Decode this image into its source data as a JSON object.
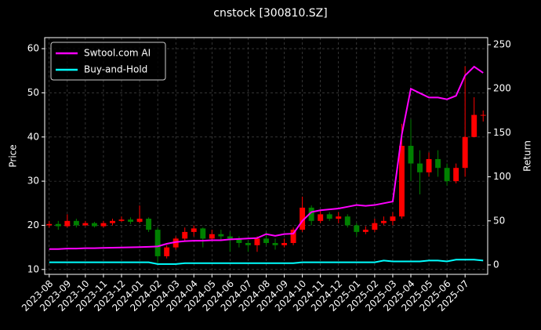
{
  "chart_data": {
    "type": "candlestick",
    "title": "cnstock [300810.SZ]",
    "y_label": "Price",
    "y2_label": "Return",
    "categories": [
      "2023-08",
      null,
      "2023-09",
      null,
      "2023-10",
      null,
      "2023-11",
      null,
      "2023-12",
      null,
      "2024-01",
      null,
      "2024-02",
      null,
      "2024-03",
      null,
      "2024-04",
      null,
      "2024-05",
      null,
      "2024-06",
      null,
      "2024-07",
      null,
      "2024-08",
      null,
      "2024-09",
      null,
      "2024-10",
      null,
      "2024-11",
      null,
      "2024-12",
      null,
      "2025-01",
      null,
      "2025-02",
      null,
      "2025-03",
      null,
      "2025-04",
      null,
      "2025-05",
      null,
      "2025-06",
      null,
      "2025-07",
      null,
      null
    ],
    "ohlc": {
      "up_color": "#ff0000",
      "down_color": "#008000",
      "open": [
        20,
        20.3,
        19.8,
        21,
        20,
        20.5,
        19.8,
        20.5,
        21,
        21.3,
        20.8,
        21.5,
        19,
        13,
        15,
        17,
        18.5,
        19.3,
        17,
        18,
        17.5,
        17,
        16,
        15.5,
        17,
        16,
        15.5,
        16,
        19,
        24,
        21,
        22.5,
        21.5,
        22,
        20,
        18.5,
        19,
        20.5,
        21,
        22,
        38,
        34,
        32,
        35,
        33,
        30,
        33,
        40,
        45
      ],
      "close": [
        20.3,
        19.8,
        21,
        20,
        20.5,
        19.8,
        20.5,
        21,
        21.3,
        20.8,
        21.5,
        19,
        13,
        15,
        17,
        18.5,
        19.3,
        17,
        18,
        17.5,
        17,
        16,
        15.5,
        17,
        16,
        15.5,
        16,
        19,
        24,
        21,
        22.5,
        21.5,
        22,
        20,
        18.5,
        19,
        20.5,
        21,
        22,
        38,
        34,
        32,
        35,
        33,
        30,
        33,
        40,
        45,
        45
      ],
      "high": [
        21,
        21,
        22.5,
        21.5,
        21,
        20.8,
        21,
        21.5,
        22,
        21.8,
        24.5,
        21.8,
        19.5,
        15.5,
        17.5,
        19.5,
        20,
        19.5,
        19,
        19,
        18.5,
        17.5,
        16.5,
        17.5,
        18.5,
        17,
        17,
        19.5,
        26.5,
        24.5,
        23.5,
        23,
        23,
        22.5,
        20.5,
        19.8,
        21.5,
        22,
        23,
        43,
        44,
        37,
        36.5,
        37,
        34,
        34,
        56,
        49,
        46
      ],
      "low": [
        19.5,
        19,
        19.5,
        19.5,
        19.8,
        19.5,
        19.5,
        20,
        20.8,
        20.3,
        20.5,
        18.5,
        11.5,
        12.5,
        14.5,
        16.5,
        17.5,
        15,
        16.5,
        16.8,
        14,
        15,
        14,
        14,
        15.5,
        14.5,
        15,
        15.5,
        18.5,
        20,
        20.5,
        21,
        20.5,
        19.5,
        17.5,
        18,
        18.5,
        20,
        20,
        21.5,
        30,
        27,
        31,
        31,
        29,
        29.5,
        31,
        43,
        43.5
      ]
    },
    "series": [
      {
        "name": "Swtool.com AI",
        "color": "#ff00ff",
        "axis": "y2",
        "values": [
          18,
          18,
          18.5,
          18.5,
          19,
          19,
          19.3,
          19.5,
          19.8,
          20,
          20.2,
          20.5,
          21,
          24,
          26,
          27,
          27.5,
          27.5,
          28,
          28,
          29,
          29.5,
          30,
          30.5,
          35,
          33,
          35,
          35.5,
          50,
          60,
          62,
          63,
          64,
          66,
          68,
          67,
          68,
          70,
          72,
          148,
          200,
          195,
          190,
          190,
          188,
          192,
          215,
          225,
          218
        ]
      },
      {
        "name": "Buy-and-Hold",
        "color": "#00ffff",
        "axis": "y2",
        "values": [
          3,
          3,
          3,
          3,
          3,
          3,
          3,
          3,
          3,
          3,
          3,
          3,
          1,
          1,
          1,
          2,
          2,
          2,
          2,
          2,
          2,
          2,
          2,
          2,
          2,
          2,
          2,
          2,
          3,
          3,
          3,
          3,
          3,
          3,
          3,
          3,
          3,
          5,
          4,
          4,
          4,
          4,
          5,
          5,
          4,
          6,
          6,
          6,
          5
        ]
      }
    ],
    "ylim": [
      8.9,
      62.5
    ],
    "yticks": [
      10,
      20,
      30,
      40,
      50,
      60
    ],
    "y2lim": [
      -10.7,
      258
    ],
    "y2ticks": [
      0,
      50,
      100,
      150,
      200,
      250
    ],
    "grid": true,
    "legend": "upper left"
  }
}
